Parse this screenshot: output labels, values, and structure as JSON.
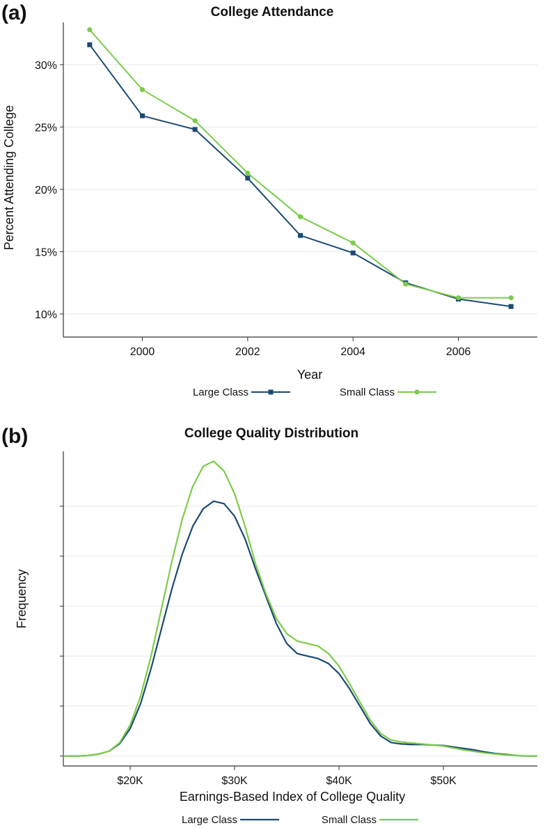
{
  "colors": {
    "large": "#1b4a72",
    "small": "#7ccb4b",
    "grid": "#e4e8ec",
    "axis": "#333333"
  },
  "panel_a_label": "(a)",
  "panel_b_label": "(b)",
  "chart_data": [
    {
      "type": "line",
      "title": "College Attendance",
      "xlabel": "Year",
      "ylabel": "Percent Attending College",
      "xlim": [
        1998.5,
        2007.5
      ],
      "ylim": [
        0.0815,
        0.334
      ],
      "xticks": [
        2000,
        2002,
        2004,
        2006
      ],
      "xtick_labels": [
        "2000",
        "2002",
        "2004",
        "2006"
      ],
      "yticks": [
        0.1,
        0.15,
        0.2,
        0.25,
        0.3
      ],
      "ytick_labels": [
        "10%",
        "15%",
        "20%",
        "25%",
        "30%"
      ],
      "grid": "horizontal",
      "legend_position": "bottom",
      "x": [
        1999,
        2000,
        2001,
        2002,
        2003,
        2004,
        2005,
        2006,
        2007
      ],
      "series": [
        {
          "name": "Large Class",
          "marker": "square",
          "values": [
            0.316,
            0.259,
            0.248,
            0.209,
            0.163,
            0.149,
            0.125,
            0.112,
            0.106
          ]
        },
        {
          "name": "Small Class",
          "marker": "circle",
          "values": [
            0.328,
            0.28,
            0.255,
            0.213,
            0.178,
            0.157,
            0.124,
            0.113,
            0.113
          ]
        }
      ]
    },
    {
      "type": "line",
      "title": "College Quality Distribution",
      "xlabel": "Earnings-Based Index of College Quality",
      "ylabel": "Frequency",
      "xlim": [
        13600,
        59000
      ],
      "ylim": [
        -0.2,
        6.1
      ],
      "xticks": [
        20000,
        30000,
        40000,
        50000
      ],
      "xtick_labels": [
        "$20K",
        "$30K",
        "$40K",
        "$50K"
      ],
      "yticks": [
        0,
        1,
        2,
        3,
        4,
        5
      ],
      "ytick_labels": [
        "",
        "",
        "",
        "",
        "",
        ""
      ],
      "grid": "horizontal",
      "legend_position": "bottom",
      "x": [
        13600,
        15000,
        16000,
        17000,
        18000,
        19000,
        20000,
        21000,
        22000,
        23000,
        24000,
        25000,
        26000,
        27000,
        28000,
        29000,
        30000,
        31000,
        32000,
        33000,
        34000,
        35000,
        36000,
        37000,
        38000,
        39000,
        40000,
        41000,
        42000,
        43000,
        44000,
        45000,
        46000,
        47000,
        48000,
        49000,
        50000,
        51000,
        52000,
        53000,
        54000,
        55000,
        56000,
        57000,
        58000,
        59000
      ],
      "series": [
        {
          "name": "Large Class",
          "values": [
            0.0,
            0.0,
            0.01,
            0.04,
            0.1,
            0.25,
            0.55,
            1.05,
            1.75,
            2.55,
            3.35,
            4.05,
            4.6,
            4.95,
            5.1,
            5.05,
            4.8,
            4.35,
            3.75,
            3.2,
            2.65,
            2.25,
            2.05,
            2.0,
            1.95,
            1.85,
            1.65,
            1.35,
            1.0,
            0.65,
            0.4,
            0.27,
            0.24,
            0.23,
            0.23,
            0.22,
            0.21,
            0.18,
            0.15,
            0.12,
            0.08,
            0.05,
            0.03,
            0.01,
            0.0,
            0.0
          ]
        },
        {
          "name": "Small Class",
          "values": [
            0.0,
            0.0,
            0.01,
            0.04,
            0.1,
            0.27,
            0.62,
            1.2,
            2.0,
            2.95,
            3.9,
            4.75,
            5.4,
            5.8,
            5.9,
            5.7,
            5.25,
            4.6,
            3.85,
            3.25,
            2.75,
            2.45,
            2.3,
            2.25,
            2.2,
            2.05,
            1.8,
            1.45,
            1.08,
            0.72,
            0.45,
            0.32,
            0.28,
            0.26,
            0.24,
            0.22,
            0.2,
            0.16,
            0.12,
            0.09,
            0.06,
            0.04,
            0.02,
            0.01,
            0.0,
            0.0
          ]
        }
      ]
    }
  ]
}
